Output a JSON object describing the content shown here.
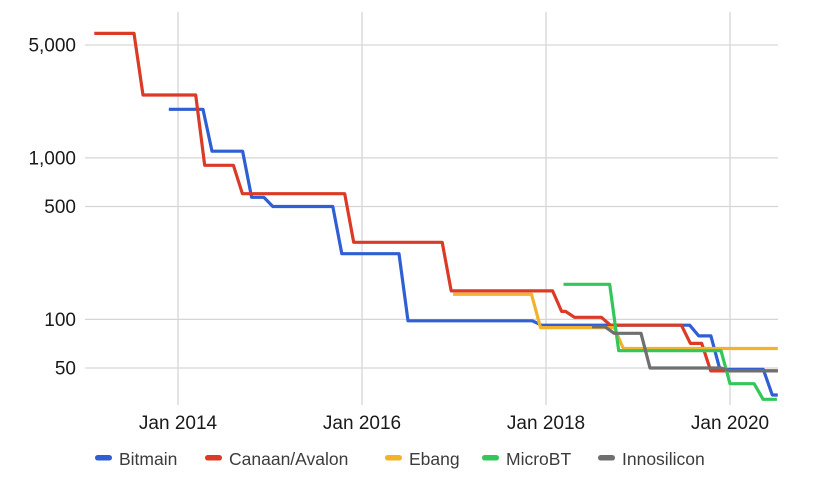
{
  "chart_data": {
    "type": "line",
    "title": "",
    "xlabel": "",
    "ylabel": "",
    "grid": true,
    "legend_position": "bottom",
    "x_axis": {
      "tick_labels": [
        "Jan 2014",
        "Jan 2016",
        "Jan 2018",
        "Jan 2020"
      ],
      "tick_years": [
        2014,
        2016,
        2018,
        2020
      ],
      "domain_years": [
        2012.99,
        2020.52
      ]
    },
    "y_axis": {
      "scale": "log",
      "tick_labels": [
        "5,000",
        "1,000",
        "500",
        "100",
        "50"
      ],
      "tick_values": [
        5000,
        1000,
        500,
        100,
        50
      ],
      "domain": [
        29.5,
        8000
      ]
    },
    "series": [
      {
        "name": "Bitmain",
        "color": "#2F5FD2",
        "steps": [
          [
            2013.9,
            2000
          ],
          [
            2014.37,
            1100
          ],
          [
            2014.8,
            570
          ],
          [
            2015.03,
            500
          ],
          [
            2015.78,
            255
          ],
          [
            2016.5,
            98
          ],
          [
            2017.95,
            92
          ],
          [
            2019.66,
            79
          ],
          [
            2019.89,
            49
          ],
          [
            2020.46,
            34
          ]
        ],
        "end_year": 2020.52
      },
      {
        "name": "Canaan/Avalon",
        "color": "#DB3B26",
        "steps": [
          [
            2013.09,
            5900
          ],
          [
            2013.62,
            2450
          ],
          [
            2014.29,
            900
          ],
          [
            2014.7,
            600
          ],
          [
            2015.91,
            300
          ],
          [
            2016.97,
            150
          ],
          [
            2018.17,
            112
          ],
          [
            2018.31,
            103
          ],
          [
            2018.7,
            92
          ],
          [
            2019.57,
            71
          ],
          [
            2019.79,
            48
          ]
        ],
        "end_year": 2020.52
      },
      {
        "name": "Ebang",
        "color": "#F0B32A",
        "steps": [
          [
            2016.99,
            143
          ],
          [
            2017.94,
            89
          ],
          [
            2018.84,
            66
          ]
        ],
        "end_year": 2020.52
      },
      {
        "name": "MicroBT",
        "color": "#33C759",
        "steps": [
          [
            2018.19,
            165
          ],
          [
            2018.79,
            64
          ],
          [
            2020.0,
            40
          ],
          [
            2020.36,
            32
          ]
        ],
        "end_year": 2020.51
      },
      {
        "name": "Innosilicon",
        "color": "#6F6F6F",
        "steps": [
          [
            2018.5,
            90
          ],
          [
            2018.74,
            82
          ],
          [
            2019.13,
            50
          ],
          [
            2020.0,
            48
          ]
        ],
        "end_year": 2020.52
      }
    ],
    "colors": {
      "grid": "#d6d6d6",
      "axis_text": "#1a1a1a",
      "legend_text": "#3c3c3c",
      "background": "#ffffff"
    }
  }
}
